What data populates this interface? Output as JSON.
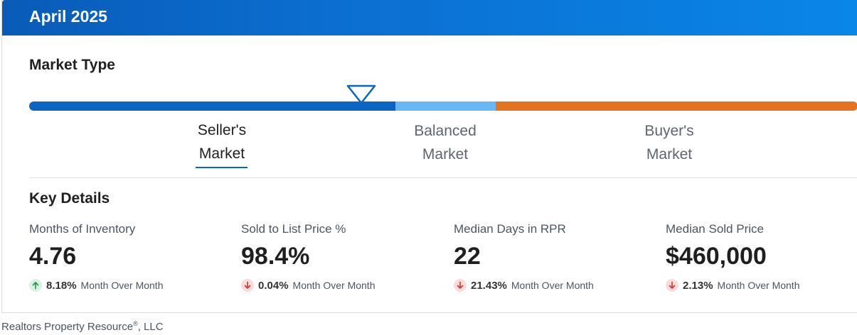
{
  "header": {
    "title": "April 2025"
  },
  "market_type": {
    "title": "Market Type",
    "segments": [
      {
        "line1": "Seller's",
        "line2": "Market",
        "selected": true
      },
      {
        "line1": "Balanced",
        "line2": "Market",
        "selected": false
      },
      {
        "line1": "Buyer's",
        "line2": "Market",
        "selected": false
      }
    ],
    "colors": {
      "sellers": "#0b66c3",
      "balanced": "#67b7f4",
      "buyers": "#e5721e"
    }
  },
  "key_details": {
    "title": "Key Details",
    "stats": [
      {
        "label": "Months of Inventory",
        "value": "4.76",
        "direction": "up",
        "change": "8.18%",
        "period": "Month Over Month"
      },
      {
        "label": "Sold to List Price %",
        "value": "98.4%",
        "direction": "down",
        "change": "0.04%",
        "period": "Month Over Month"
      },
      {
        "label": "Median Days in RPR",
        "value": "22",
        "direction": "down",
        "change": "21.43%",
        "period": "Month Over Month"
      },
      {
        "label": "Median Sold Price",
        "value": "$460,000",
        "direction": "down",
        "change": "2.13%",
        "period": "Month Over Month"
      }
    ]
  },
  "footer": {
    "company": "Realtors Property Resource",
    "trademark": "®",
    "suffix": ", LLC"
  }
}
